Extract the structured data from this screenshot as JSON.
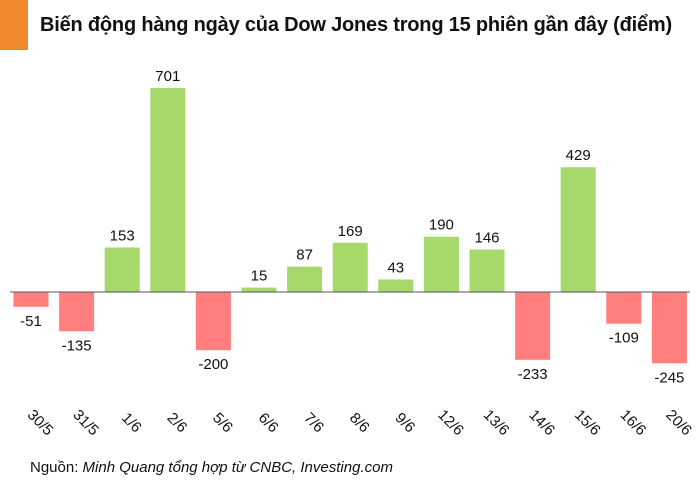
{
  "header": {
    "title": "Biến động hàng ngày của Dow Jones trong 15 phiên gần đây (điểm)",
    "accent_color": "#F0892B"
  },
  "footer": {
    "source_label": "Nguồn: ",
    "source_text": "Minh Quang tổng hợp từ CNBC, Investing.com"
  },
  "chart_data": {
    "type": "bar",
    "title": "Biến động hàng ngày của Dow Jones trong 15 phiên gần đây (điểm)",
    "xlabel": "",
    "ylabel": "",
    "categories": [
      "30/5",
      "31/5",
      "1/6",
      "2/6",
      "5/6",
      "6/6",
      "7/6",
      "8/6",
      "9/6",
      "12/6",
      "13/6",
      "14/6",
      "15/6",
      "16/6",
      "20/6"
    ],
    "values": [
      -51,
      -135,
      153,
      701,
      -200,
      15,
      87,
      169,
      43,
      190,
      146,
      -233,
      429,
      -109,
      -245
    ],
    "positive_color": "#A6D96A",
    "negative_color": "#FF7F7F",
    "grid": false,
    "legend": "none"
  }
}
